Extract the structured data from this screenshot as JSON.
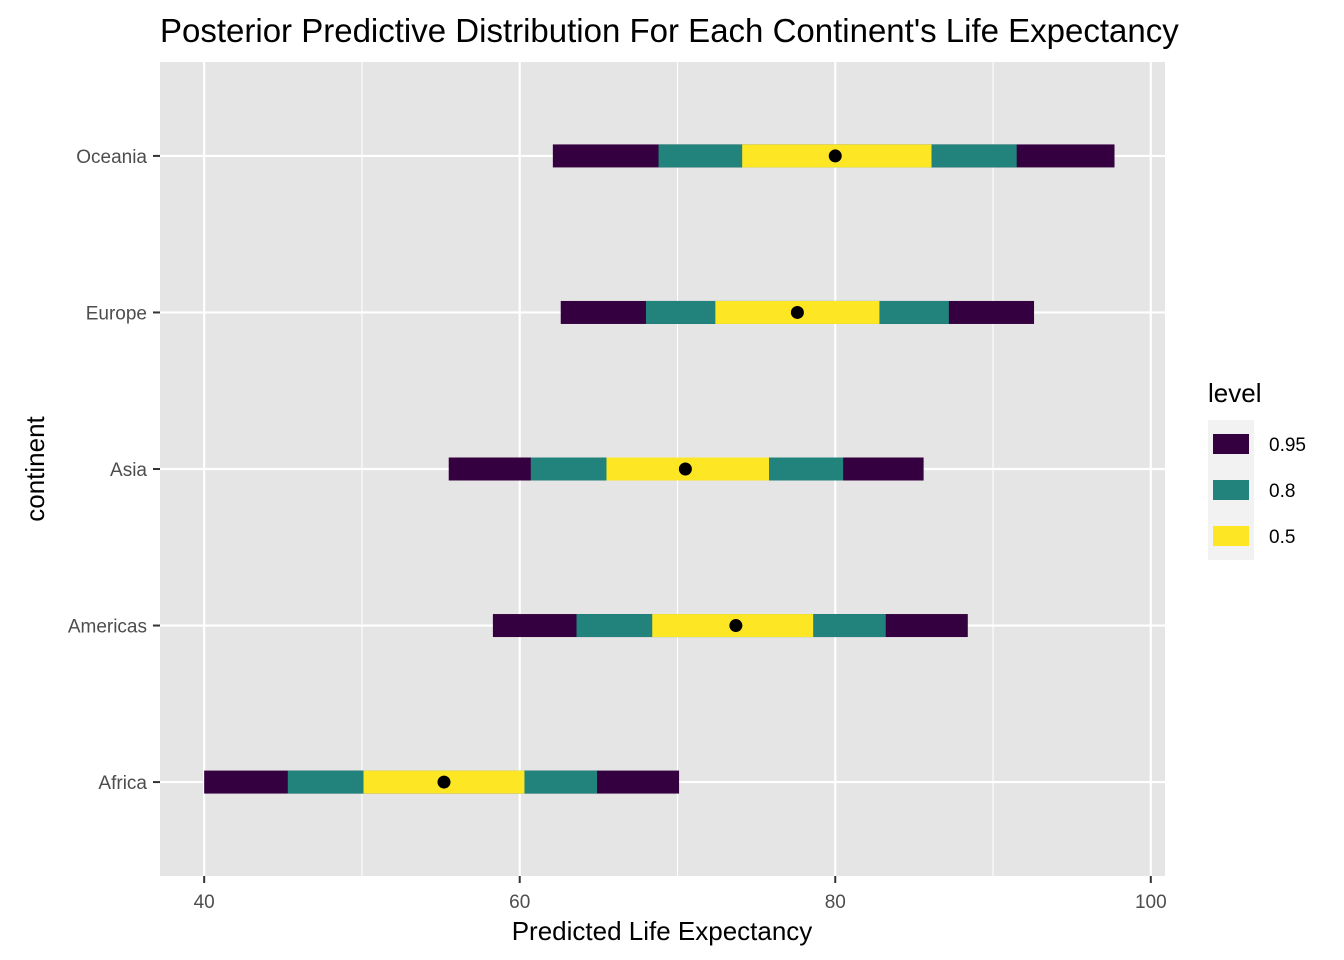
{
  "chart_data": {
    "type": "interval",
    "title": "Posterior Predictive Distribution For Each Continent's Life Expectancy",
    "xlabel": "Predicted Life Expectancy",
    "ylabel": "continent",
    "xlim": [
      37.2,
      100.9
    ],
    "x_ticks": [
      40,
      60,
      80,
      100
    ],
    "grid": true,
    "legend": {
      "title": "level",
      "position": "right",
      "entries": [
        {
          "label": "0.95",
          "color": "#35003f"
        },
        {
          "label": "0.8",
          "color": "#21837b"
        },
        {
          "label": "0.5",
          "color": "#fde725"
        }
      ]
    },
    "categories": [
      "Africa",
      "Americas",
      "Asia",
      "Europe",
      "Oceania"
    ],
    "rows": [
      {
        "continent": "Africa",
        "point": 55.2,
        "intervals": {
          "0.95": [
            40.0,
            70.1
          ],
          "0.8": [
            45.3,
            64.9
          ],
          "0.5": [
            50.1,
            60.3
          ]
        }
      },
      {
        "continent": "Americas",
        "point": 73.7,
        "intervals": {
          "0.95": [
            58.3,
            88.4
          ],
          "0.8": [
            63.6,
            83.2
          ],
          "0.5": [
            68.4,
            78.6
          ]
        }
      },
      {
        "continent": "Asia",
        "point": 70.5,
        "intervals": {
          "0.95": [
            55.5,
            85.6
          ],
          "0.8": [
            60.7,
            80.5
          ],
          "0.5": [
            65.5,
            75.8
          ]
        }
      },
      {
        "continent": "Europe",
        "point": 77.6,
        "intervals": {
          "0.95": [
            62.6,
            92.6
          ],
          "0.8": [
            68.0,
            87.2
          ],
          "0.5": [
            72.4,
            82.8
          ]
        }
      },
      {
        "continent": "Oceania",
        "point": 80.0,
        "intervals": {
          "0.95": [
            62.1,
            97.7
          ],
          "0.8": [
            68.8,
            91.5
          ],
          "0.5": [
            74.1,
            86.1
          ]
        }
      }
    ]
  }
}
